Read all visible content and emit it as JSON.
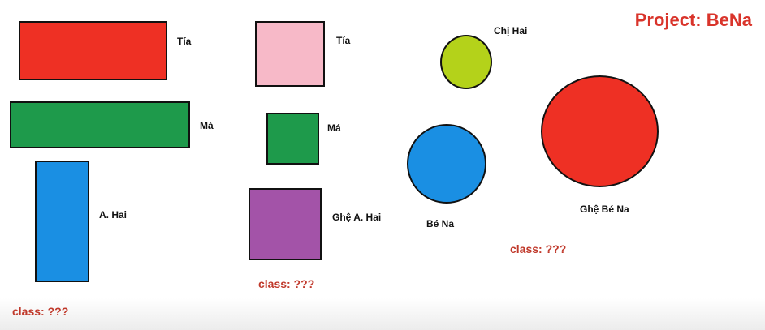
{
  "title": "Project: BeNa",
  "colors": {
    "red": "#ee3024",
    "green": "#1e9a4b",
    "blue": "#1a8fe3",
    "pink": "#f7b9c8",
    "purple": "#a353a8",
    "lime": "#b4d21a",
    "class_text": "#c0392b"
  },
  "groups": [
    {
      "shape": "rectangle",
      "items": [
        {
          "label": "Tía",
          "color": "red"
        },
        {
          "label": "Má",
          "color": "green"
        },
        {
          "label": "A. Hai",
          "color": "blue"
        }
      ],
      "class_label": "class: ???"
    },
    {
      "shape": "square",
      "items": [
        {
          "label": "Tía",
          "color": "pink"
        },
        {
          "label": "Má",
          "color": "green"
        },
        {
          "label": "Ghệ A. Hai",
          "color": "purple"
        }
      ],
      "class_label": "class: ???"
    },
    {
      "shape": "circle",
      "items": [
        {
          "label": "Chị Hai",
          "color": "lime"
        },
        {
          "label": "Bé Na",
          "color": "blue"
        },
        {
          "label": "Ghệ Bé Na",
          "color": "red"
        }
      ],
      "class_label": "class: ???"
    }
  ]
}
